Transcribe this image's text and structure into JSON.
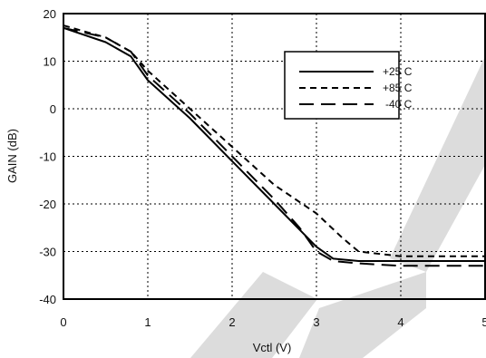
{
  "chart_data": {
    "type": "line",
    "xlabel": "Vctl (V)",
    "ylabel": "GAIN (dB)",
    "xlim": [
      0,
      5
    ],
    "ylim": [
      -40,
      20
    ],
    "x_ticks": [
      "0",
      "1",
      "2",
      "3",
      "4",
      "5"
    ],
    "y_ticks": [
      "20",
      "10",
      "0",
      "-10",
      "-20",
      "-30",
      "-40"
    ],
    "grid": true,
    "legend_position": "top-right",
    "series": [
      {
        "name": "+25 C",
        "dash": "solid",
        "x": [
          0,
          0.5,
          0.8,
          1.0,
          1.5,
          2.0,
          2.5,
          3.0,
          3.2,
          3.5,
          4.0,
          4.5,
          5.0
        ],
        "y": [
          17,
          14,
          11,
          6,
          -2,
          -11,
          -20,
          -29,
          -31.5,
          -32,
          -32,
          -32,
          -32
        ]
      },
      {
        "name": "+85 C",
        "dash": "short-dash",
        "x": [
          0,
          0.5,
          0.8,
          1.0,
          1.5,
          2.0,
          2.5,
          3.0,
          3.3,
          3.5,
          4.0,
          4.5,
          5.0
        ],
        "y": [
          17.5,
          15,
          12,
          8,
          0,
          -8,
          -16,
          -22,
          -27,
          -30,
          -31,
          -31,
          -31
        ]
      },
      {
        "name": "-40 C",
        "dash": "long-dash",
        "x": [
          0,
          0.5,
          0.8,
          1.0,
          1.5,
          2.0,
          2.5,
          2.8,
          3.0,
          3.2,
          3.5,
          4.0,
          4.5,
          5.0
        ],
        "y": [
          17,
          15,
          12,
          7,
          -1,
          -10,
          -19,
          -25,
          -30,
          -32,
          -32.5,
          -33,
          -33,
          -33
        ]
      }
    ]
  }
}
